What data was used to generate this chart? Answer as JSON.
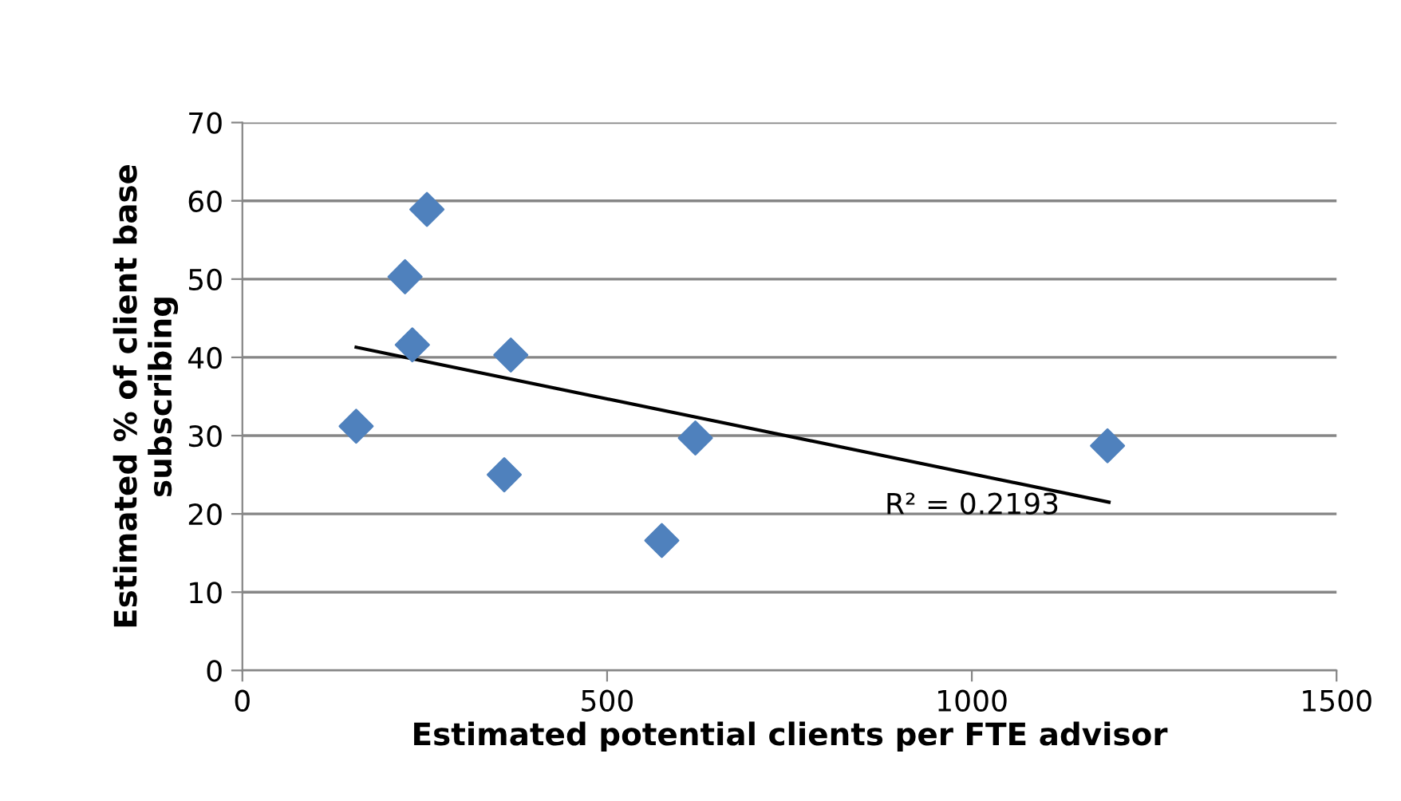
{
  "chart_data": {
    "type": "scatter",
    "xlabel": "Estimated potential clients per FTE advisor",
    "ylabel": "Estimated % of client base\nsubscribing",
    "series": [
      {
        "color": "#4f81bd",
        "marker": "diamond",
        "x": [
          156,
          223,
          253,
          233,
          368,
          359,
          621,
          575,
          1186
        ],
        "values": [
          31.2,
          50.3,
          58.9,
          41.6,
          40.3,
          25.0,
          29.7,
          16.6,
          28.7
        ]
      },
      {
        "type": "line",
        "color": "#000000",
        "marker": "none",
        "line_style": "solid",
        "x": [
          156,
          1188
        ],
        "values": [
          41.3,
          21.5
        ]
      }
    ],
    "annotations": [
      "R² = 0.2193"
    ],
    "xlim": [
      0,
      1500
    ],
    "xticks": [
      0,
      500,
      1000,
      1500
    ],
    "ylim": [
      0,
      70
    ],
    "yticks": [
      0,
      10,
      20,
      30,
      40,
      50,
      60,
      70
    ],
    "grid": "y",
    "legend": false
  }
}
